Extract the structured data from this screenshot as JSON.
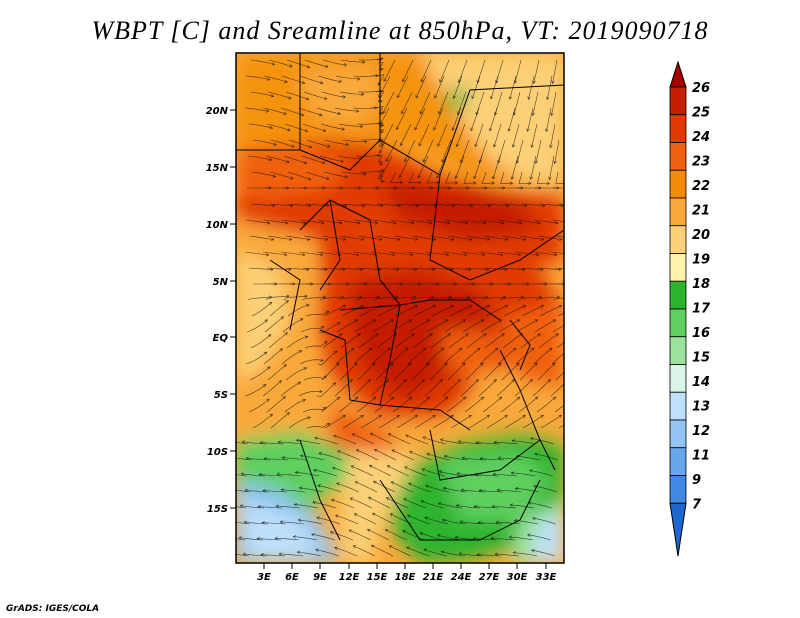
{
  "title": "WBPT [C] and Sreamline at 850hPa, VT: 2019090718",
  "credit": "GrADS: IGES/COLA",
  "lat_labels": [
    "20N",
    "15N",
    "10N",
    "5N",
    "EQ",
    "5S",
    "10S",
    "15S"
  ],
  "lon_labels": [
    "3E",
    "6E",
    "9E",
    "12E",
    "15E",
    "18E",
    "21E",
    "24E",
    "27E",
    "30E",
    "33E"
  ],
  "colorbar": {
    "labels": [
      "26",
      "25",
      "24",
      "23",
      "22",
      "21",
      "20",
      "19",
      "18",
      "17",
      "16",
      "15",
      "14",
      "13",
      "12",
      "11",
      "9",
      "7"
    ],
    "colors": [
      "#a50000",
      "#c51e00",
      "#e13a00",
      "#f06010",
      "#f58a0a",
      "#f9a93a",
      "#fcd076",
      "#fff1a8",
      "#2db42d",
      "#5fcf5f",
      "#9be39b",
      "#d9f5e6",
      "#bfe0fb",
      "#91c4f3",
      "#67a7ea",
      "#3f8ae0",
      "#1f67d0"
    ]
  }
}
